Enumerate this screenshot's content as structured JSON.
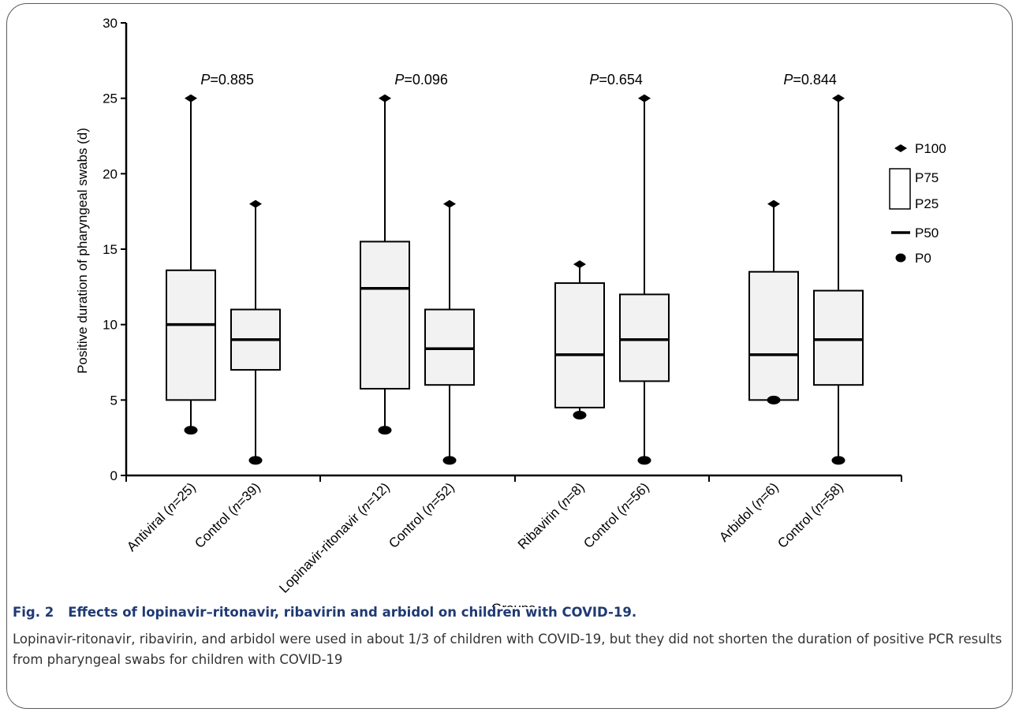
{
  "chart_data": {
    "type": "box",
    "ylabel": "Positive duration of pharyngeal swabs (d)",
    "xlabel": "Groups",
    "ylim": [
      0,
      30
    ],
    "yticks": [
      0,
      5,
      10,
      15,
      20,
      25,
      30
    ],
    "grid": false,
    "legend_position": "right",
    "legend": [
      {
        "symbol": "diamond",
        "label": "P100"
      },
      {
        "symbol": "box-top",
        "label": "P75"
      },
      {
        "symbol": "box-bottom",
        "label": "P25"
      },
      {
        "symbol": "dash",
        "label": "P50"
      },
      {
        "symbol": "ellipse",
        "label": "P0"
      }
    ],
    "groups": [
      {
        "p_label": "P",
        "p_value": "=0.885",
        "boxes": [
          {
            "name": "Antiviral",
            "n": "25",
            "p0": 3,
            "p25": 5,
            "p50": 10,
            "p75": 13.6,
            "p100": 25
          },
          {
            "name": "Control",
            "n": "39",
            "p0": 1,
            "p25": 7,
            "p50": 9,
            "p75": 11,
            "p100": 18
          }
        ]
      },
      {
        "p_label": "P",
        "p_value": "=0.096",
        "boxes": [
          {
            "name": "Lopinavir-ritonavir",
            "n": "12",
            "p0": 3,
            "p25": 5.75,
            "p50": 12.4,
            "p75": 15.5,
            "p100": 25
          },
          {
            "name": "Control",
            "n": "52",
            "p0": 1,
            "p25": 6,
            "p50": 8.4,
            "p75": 11,
            "p100": 18
          }
        ]
      },
      {
        "p_label": "P",
        "p_value": "=0.654",
        "boxes": [
          {
            "name": "Ribavirin",
            "n": "8",
            "p0": 4,
            "p25": 4.5,
            "p50": 8,
            "p75": 12.75,
            "p100": 14
          },
          {
            "name": "Control",
            "n": "56",
            "p0": 1,
            "p25": 6.25,
            "p50": 9,
            "p75": 12,
            "p100": 25
          }
        ]
      },
      {
        "p_label": "P",
        "p_value": "=0.844",
        "boxes": [
          {
            "name": "Arbidol",
            "n": "6",
            "p0": 5,
            "p25": 5,
            "p50": 8,
            "p75": 13.5,
            "p100": 18
          },
          {
            "name": "Control",
            "n": "58",
            "p0": 1,
            "p25": 6,
            "p50": 9,
            "p75": 12.25,
            "p100": 25
          }
        ]
      }
    ]
  },
  "caption": {
    "fig_num": "Fig. 2",
    "fig_title": "Effects of lopinavir–ritonavir, ribavirin and arbidol on children with COVID-19.",
    "body": "Lopinavir-ritonavir, ribavirin, and arbidol were used in about 1/3 of children with COVID-19, but they did not shorten the duration of positive PCR results from pharyngeal swabs for children with COVID-19"
  },
  "colors": {
    "box_fill": "#f2f2f2",
    "ink": "#000000",
    "caption_title": "#1f3a73",
    "frame": "#5a5a5a"
  }
}
